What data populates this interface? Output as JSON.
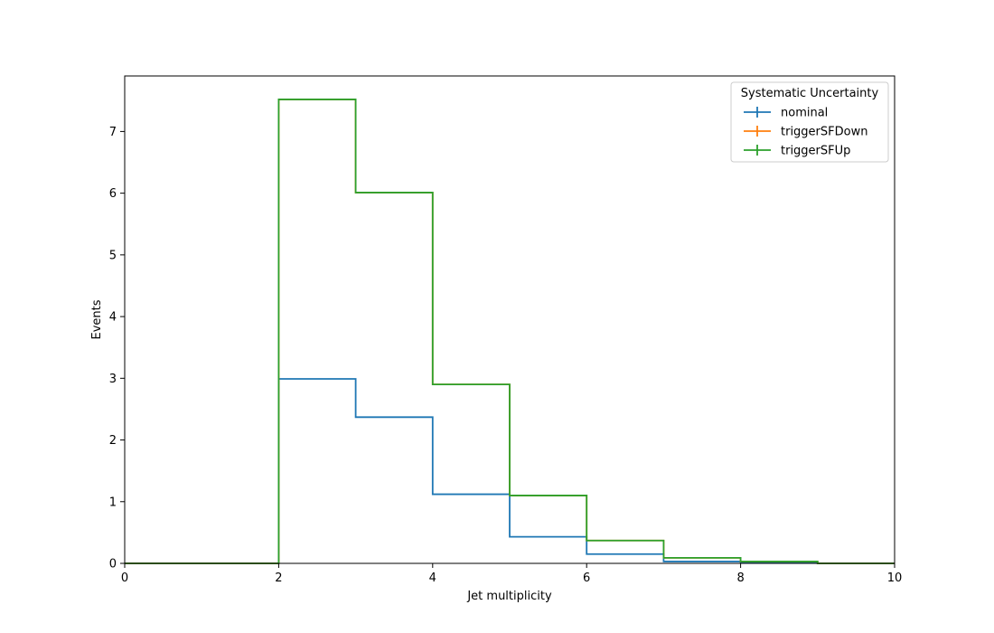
{
  "chart_data": {
    "type": "line",
    "histogram_style": "step",
    "xlabel": "Jet multiplicity",
    "ylabel": "Events",
    "xlim": [
      0,
      10
    ],
    "ylim": [
      0,
      7.9
    ],
    "x_ticks": [
      0,
      2,
      4,
      6,
      8,
      10
    ],
    "y_ticks": [
      0,
      1,
      2,
      3,
      4,
      5,
      6,
      7
    ],
    "bin_edges": [
      0,
      1,
      2,
      3,
      4,
      5,
      6,
      7,
      8,
      9,
      10
    ],
    "grid": false,
    "legend": {
      "title": "Systematic Uncertainty",
      "placement": "top-right"
    },
    "series": [
      {
        "name": "nominal",
        "color": "#1f77b4",
        "values": [
          0,
          0,
          2.99,
          2.37,
          1.12,
          0.43,
          0.15,
          0.03,
          0.01,
          0.0
        ]
      },
      {
        "name": "triggerSFDown",
        "color": "#ff7f0e",
        "values": [
          0,
          0,
          7.52,
          6.01,
          2.9,
          1.1,
          0.37,
          0.09,
          0.03,
          0.0
        ]
      },
      {
        "name": "triggerSFUp",
        "color": "#2ca02c",
        "values": [
          0,
          0,
          7.52,
          6.01,
          2.9,
          1.1,
          0.37,
          0.09,
          0.03,
          0.0
        ]
      }
    ]
  }
}
